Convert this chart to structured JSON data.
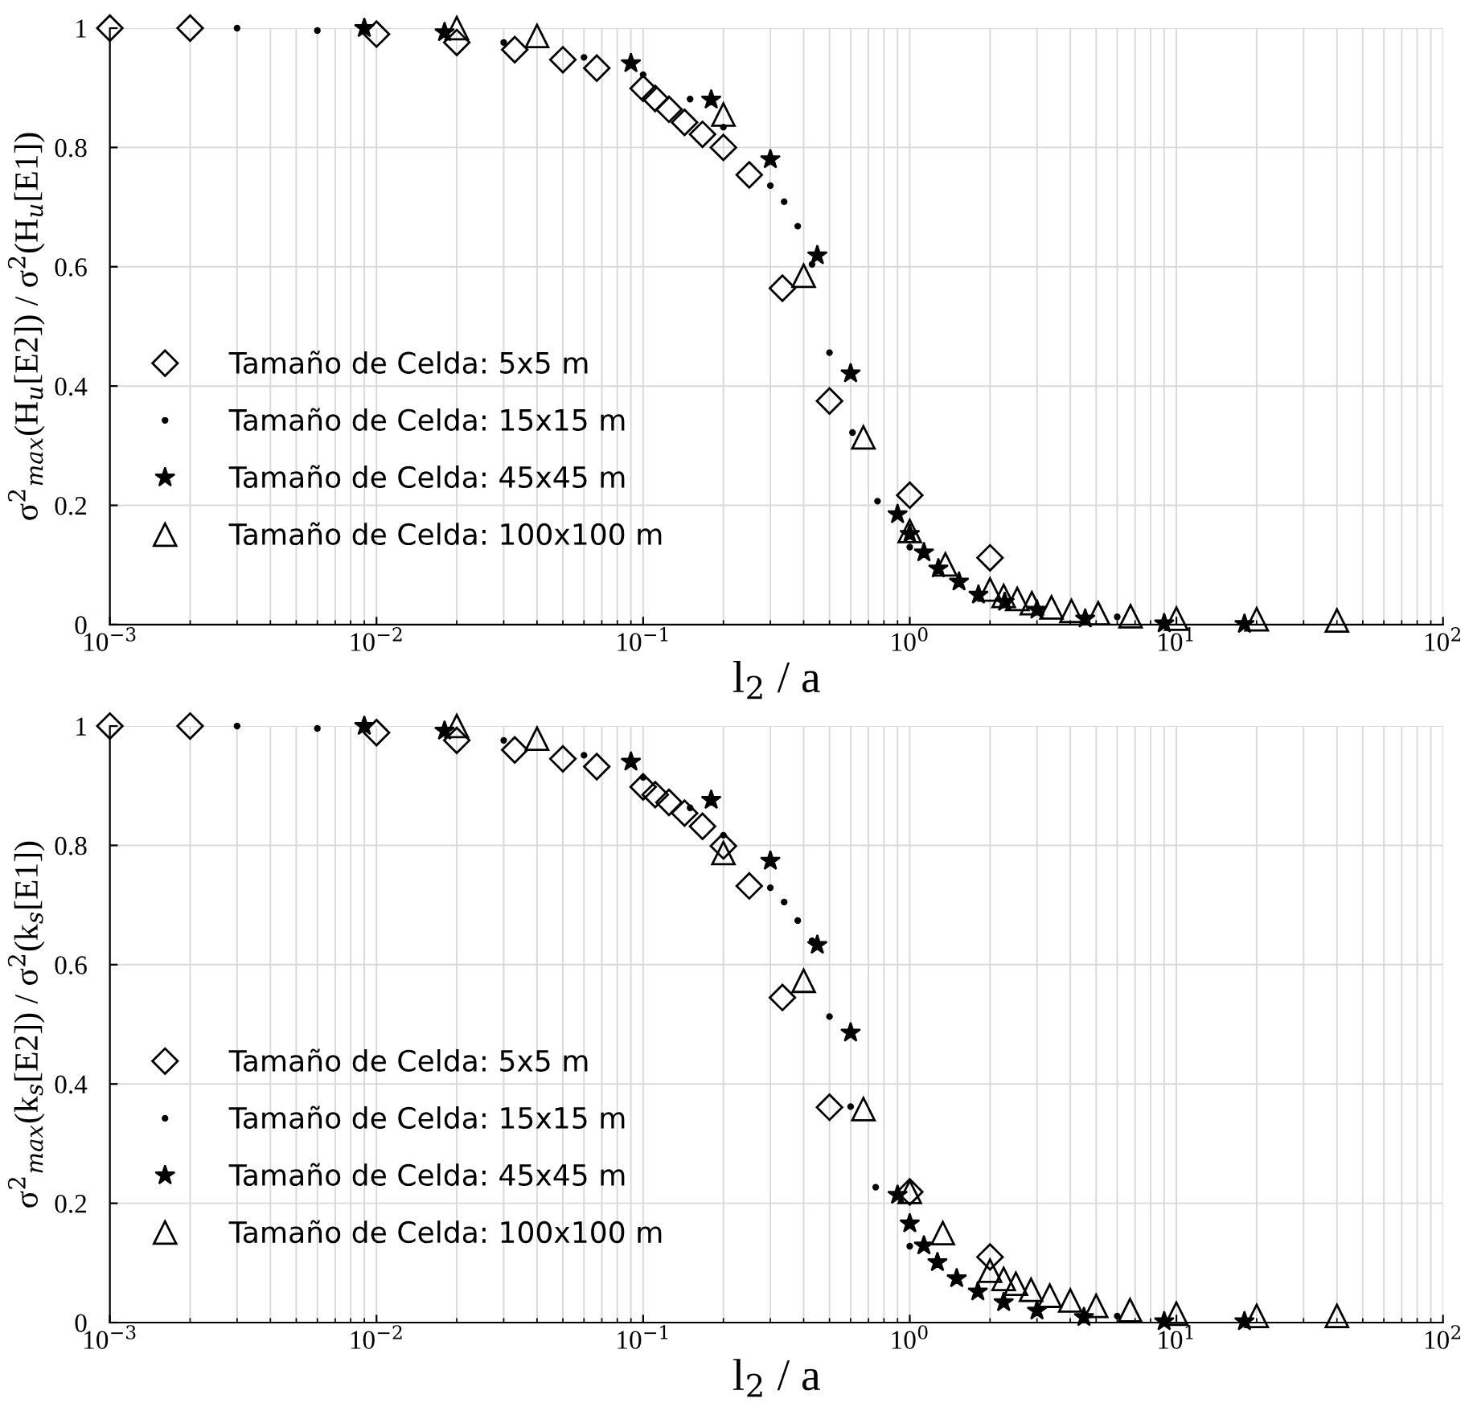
{
  "chart_data": [
    {
      "type": "scatter",
      "xlabel": "l$_{2}$ / a",
      "ylabel": "σ$^{2}$$_{max}$(H$_{u}$[E2]) / σ$^{2}$(H$_{u}$[E1])",
      "log": "x",
      "grid": true,
      "legend": "bottom left",
      "xlim": [
        0.001,
        100
      ],
      "ylim": [
        0,
        1
      ],
      "xticks": [
        {
          "value": 0.001,
          "label": "10$^{−3}$"
        },
        {
          "value": 0.01,
          "label": "10$^{−2}$"
        },
        {
          "value": 0.1,
          "label": "10$^{−1}$"
        },
        {
          "value": 1,
          "label": "10$^{0}$"
        },
        {
          "value": 10,
          "label": "10$^{1}$"
        },
        {
          "value": 100,
          "label": "10$^{2}$"
        }
      ],
      "yticks": [
        0,
        0.2,
        0.4,
        0.6,
        0.8,
        1
      ],
      "series": [
        {
          "name": "Tamaño de Celda: 5x5 m",
          "color": "#000000",
          "marker": "diamond",
          "x": [
            0.001,
            0.002,
            0.01,
            0.02,
            0.033,
            0.05,
            0.067,
            0.1,
            0.111,
            0.125,
            0.143,
            0.167,
            0.2,
            0.25,
            0.333,
            0.5,
            1.0,
            2.0
          ],
          "values": [
            1.0,
            1.0,
            0.99,
            0.976,
            0.964,
            0.947,
            0.933,
            0.899,
            0.882,
            0.864,
            0.842,
            0.822,
            0.8,
            0.754,
            0.564,
            0.375,
            0.217,
            0.112
          ]
        },
        {
          "name": "Tamaño de Celda: 15x15 m",
          "color": "#000000",
          "marker": "circle",
          "x": [
            0.003,
            0.006,
            0.03,
            0.06,
            0.1,
            0.15,
            0.2,
            0.3,
            0.338,
            0.38,
            0.43,
            0.5,
            0.61,
            0.757,
            1.0,
            6.0
          ],
          "values": [
            1.0,
            0.996,
            0.976,
            0.951,
            0.922,
            0.881,
            0.834,
            0.736,
            0.709,
            0.668,
            0.604,
            0.456,
            0.322,
            0.207,
            0.13,
            0.013
          ]
        },
        {
          "name": "Tamaño de Celda: 45x45 m",
          "color": "#000000",
          "marker": "star",
          "x": [
            0.009,
            0.018,
            0.09,
            0.18,
            0.3,
            0.45,
            0.6,
            0.9,
            1.0,
            1.13,
            1.28,
            1.53,
            1.81,
            2.27,
            3.0,
            4.55,
            9.0,
            18.0
          ],
          "values": [
            1.0,
            0.993,
            0.941,
            0.88,
            0.78,
            0.619,
            0.421,
            0.185,
            0.152,
            0.121,
            0.094,
            0.072,
            0.05,
            0.038,
            0.025,
            0.01,
            0.002,
            0.001
          ]
        },
        {
          "name": "Tamaño de Celda: 100x100 m",
          "color": "#000000",
          "marker": "triangle",
          "x": [
            0.02,
            0.04,
            0.2,
            0.4,
            0.67,
            1.0,
            1.36,
            2.0,
            2.25,
            2.53,
            2.87,
            3.4,
            4.04,
            5.09,
            6.73,
            10.0,
            20.0,
            40.0
          ],
          "values": [
            1.0,
            0.987,
            0.855,
            0.585,
            0.314,
            0.157,
            0.101,
            0.059,
            0.048,
            0.043,
            0.036,
            0.029,
            0.023,
            0.019,
            0.014,
            0.01,
            0.009,
            0.007
          ]
        }
      ]
    },
    {
      "type": "scatter",
      "xlabel": "l$_{2}$ / a",
      "ylabel": "σ$^{2}$$_{max}$(k$_{s}$[E2]) / σ$^{2}$(k$_{s}$[E1])",
      "log": "x",
      "grid": true,
      "legend": "bottom left",
      "xlim": [
        0.001,
        100
      ],
      "ylim": [
        0,
        1
      ],
      "xticks": [
        {
          "value": 0.001,
          "label": "10$^{−3}$"
        },
        {
          "value": 0.01,
          "label": "10$^{−2}$"
        },
        {
          "value": 0.1,
          "label": "10$^{−1}$"
        },
        {
          "value": 1,
          "label": "10$^{0}$"
        },
        {
          "value": 10,
          "label": "10$^{1}$"
        },
        {
          "value": 100,
          "label": "10$^{2}$"
        }
      ],
      "yticks": [
        0,
        0.2,
        0.4,
        0.6,
        0.8,
        1
      ],
      "series": [
        {
          "name": "Tamaño de Celda: 5x5 m",
          "color": "#000000",
          "marker": "diamond",
          "x": [
            0.001,
            0.002,
            0.01,
            0.02,
            0.033,
            0.05,
            0.067,
            0.1,
            0.111,
            0.125,
            0.143,
            0.167,
            0.2,
            0.25,
            0.333,
            0.5,
            1.0,
            2.0
          ],
          "values": [
            1.0,
            1.0,
            0.989,
            0.976,
            0.96,
            0.945,
            0.932,
            0.898,
            0.885,
            0.872,
            0.854,
            0.832,
            0.799,
            0.732,
            0.545,
            0.361,
            0.219,
            0.11
          ]
        },
        {
          "name": "Tamaño de Celda: 15x15 m",
          "color": "#000000",
          "marker": "circle",
          "x": [
            0.003,
            0.006,
            0.03,
            0.06,
            0.1,
            0.15,
            0.2,
            0.3,
            0.338,
            0.38,
            0.43,
            0.5,
            0.6,
            0.745,
            1.0,
            6.0
          ],
          "values": [
            1.0,
            0.996,
            0.976,
            0.951,
            0.914,
            0.863,
            0.817,
            0.729,
            0.705,
            0.674,
            0.64,
            0.513,
            0.362,
            0.227,
            0.128,
            0.011
          ]
        },
        {
          "name": "Tamaño de Celda: 45x45 m",
          "color": "#000000",
          "marker": "star",
          "x": [
            0.009,
            0.018,
            0.09,
            0.18,
            0.3,
            0.45,
            0.6,
            0.9,
            1.0,
            1.13,
            1.27,
            1.5,
            1.8,
            2.25,
            3.0,
            4.5,
            9.0,
            18.0
          ],
          "values": [
            1.0,
            0.992,
            0.94,
            0.876,
            0.774,
            0.633,
            0.486,
            0.214,
            0.166,
            0.129,
            0.101,
            0.074,
            0.052,
            0.034,
            0.02,
            0.009,
            0.002,
            0.002
          ]
        },
        {
          "name": "Tamaño de Celda: 100x100 m",
          "color": "#000000",
          "marker": "triangle",
          "x": [
            0.02,
            0.04,
            0.2,
            0.4,
            0.67,
            1.0,
            1.33,
            2.0,
            2.25,
            2.5,
            2.85,
            3.35,
            4.0,
            5.0,
            6.7,
            10.0,
            20.0,
            40.0
          ],
          "values": [
            1.0,
            0.979,
            0.787,
            0.573,
            0.358,
            0.219,
            0.15,
            0.087,
            0.073,
            0.065,
            0.055,
            0.045,
            0.037,
            0.028,
            0.021,
            0.015,
            0.011,
            0.011
          ]
        }
      ]
    }
  ]
}
